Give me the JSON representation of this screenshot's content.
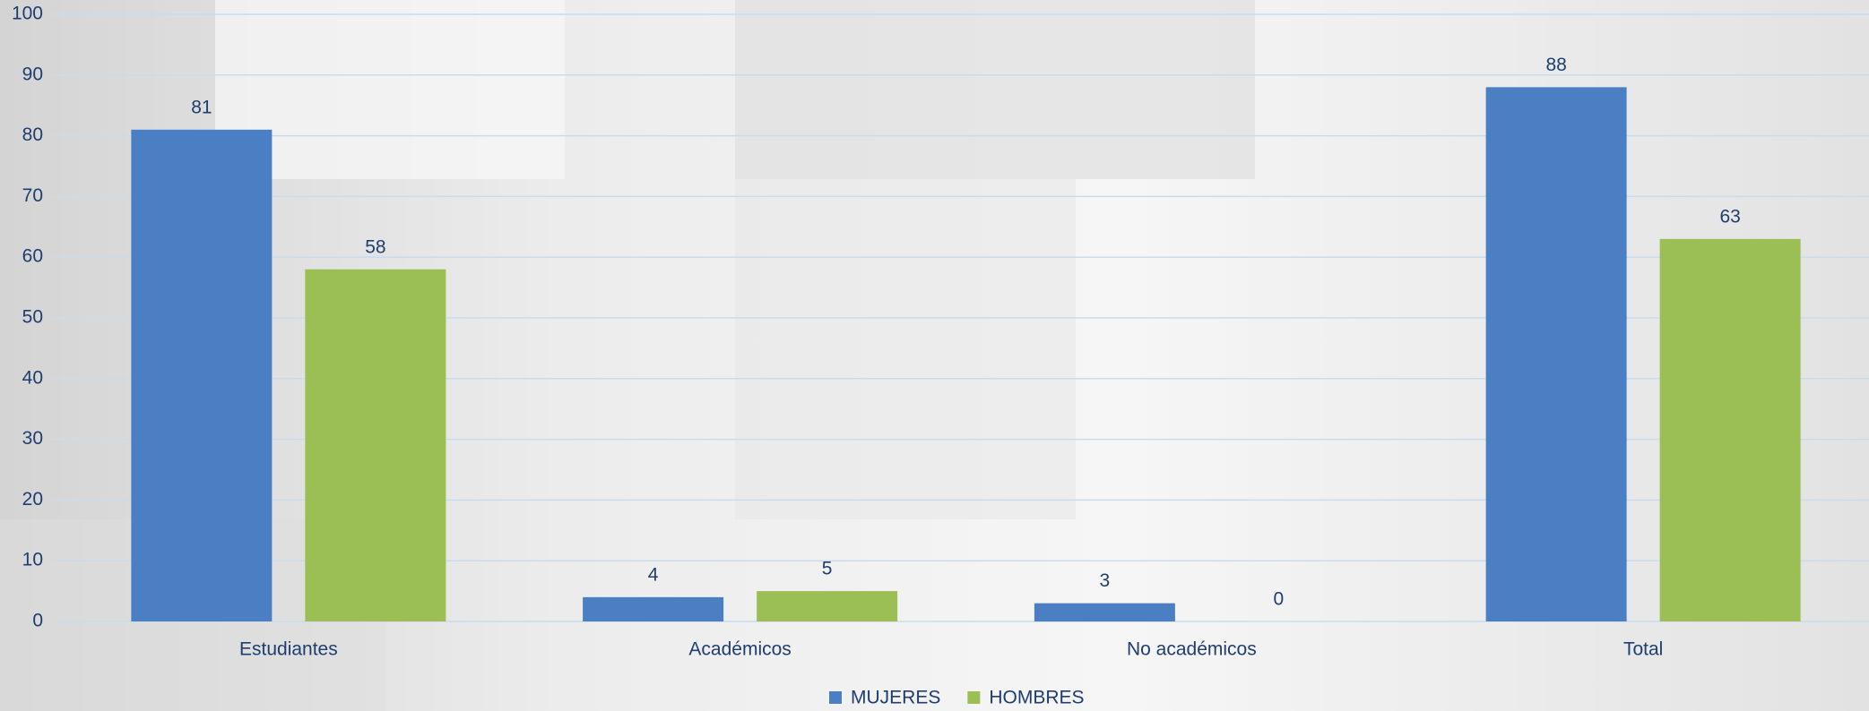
{
  "chart_data": {
    "type": "bar",
    "categories": [
      "Estudiantes",
      "Académicos",
      "No académicos",
      "Total"
    ],
    "series": [
      {
        "name": "MUJERES",
        "color": "#4a7fc4",
        "values": [
          81,
          4,
          3,
          88
        ]
      },
      {
        "name": "HOMBRES",
        "color": "#9bbf55",
        "values": [
          58,
          5,
          0,
          63
        ]
      }
    ],
    "ylim": [
      0,
      100
    ],
    "yticks": [
      0,
      10,
      20,
      30,
      40,
      50,
      60,
      70,
      80,
      90,
      100
    ],
    "grid": true,
    "legend": "bottom"
  }
}
